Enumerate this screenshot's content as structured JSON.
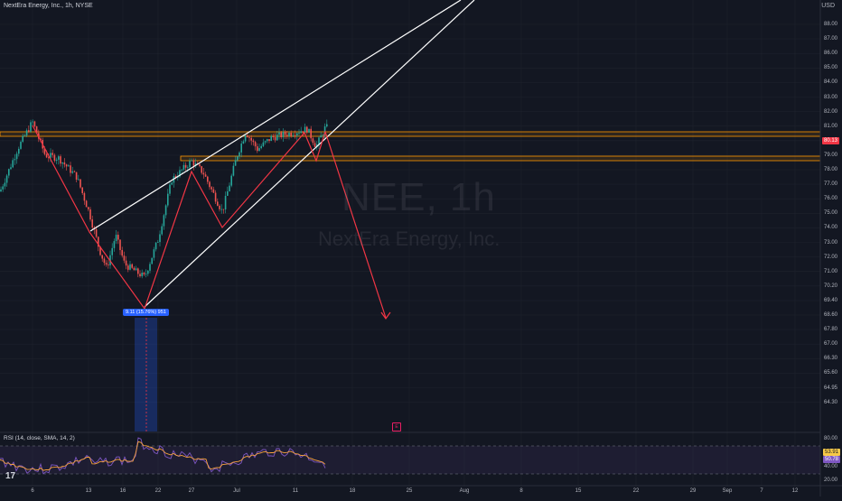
{
  "header": {
    "symbol_text": "NextEra Energy, Inc., 1h, NYSE"
  },
  "currency": "USD",
  "watermark": {
    "symbol": "NEE, 1h",
    "name": "NextEra Energy, Inc."
  },
  "price_axis": {
    "labels": [
      "88.00",
      "87.00",
      "86.00",
      "85.00",
      "84.00",
      "83.00",
      "82.00",
      "81.00",
      "80.00",
      "79.00",
      "78.00",
      "77.00",
      "76.00",
      "75.00",
      "74.00",
      "73.00",
      "72.00",
      "71.00",
      "70.20",
      "69.40",
      "68.60",
      "67.80",
      "67.00",
      "66.30",
      "65.60",
      "64.95",
      "64.30"
    ],
    "current_price": "80.13"
  },
  "time_axis": {
    "labels": [
      "6",
      "13",
      "16",
      "22",
      "27",
      "Jul",
      "11",
      "18",
      "25",
      "Aug",
      "8",
      "15",
      "22",
      "29",
      "Sep",
      "7",
      "12"
    ]
  },
  "measure_label": "9.11 (15.76%) 951",
  "earnings_badge": "E",
  "rsi": {
    "label": "RSI (14, close, SMA, 14, 2)",
    "value1": "53.91",
    "value2": "50.78",
    "levels": [
      "80.00",
      "60.00",
      "40.00",
      "20.00"
    ]
  },
  "colors": {
    "background": "#131722",
    "up": "#26a69a",
    "down": "#ef5350",
    "trendline": "#ffffff",
    "zigzag": "#f23645",
    "zone": "#ff9800",
    "rsi_line": "#7e57c2",
    "rsi_ma": "#f7c948"
  },
  "chart_data": {
    "type": "candlestick",
    "interval": "1h",
    "ylim": [
      64.3,
      88.5
    ],
    "x_categories": [
      "6",
      "13",
      "16",
      "22",
      "27",
      "Jul",
      "11",
      "18"
    ],
    "zigzag_points": [
      {
        "x": "Jun 5",
        "y": 81.2
      },
      {
        "x": "Jun 12",
        "y": 74.9
      },
      {
        "x": "Jun 20",
        "y": 70.5
      },
      {
        "x": "Jun 26",
        "y": 78.5
      },
      {
        "x": "Jul 1",
        "y": 74.9
      },
      {
        "x": "Jul 10",
        "y": 80.9
      },
      {
        "x": "Jul 12",
        "y": 79.5
      },
      {
        "x": "Jul 13",
        "y": 81.0
      },
      {
        "x": "Jul 22",
        "y": 70.2
      }
    ],
    "horizontal_zones": [
      {
        "from": 80.6,
        "to": 80.9
      },
      {
        "from": 79.2,
        "to": 79.5
      }
    ]
  }
}
